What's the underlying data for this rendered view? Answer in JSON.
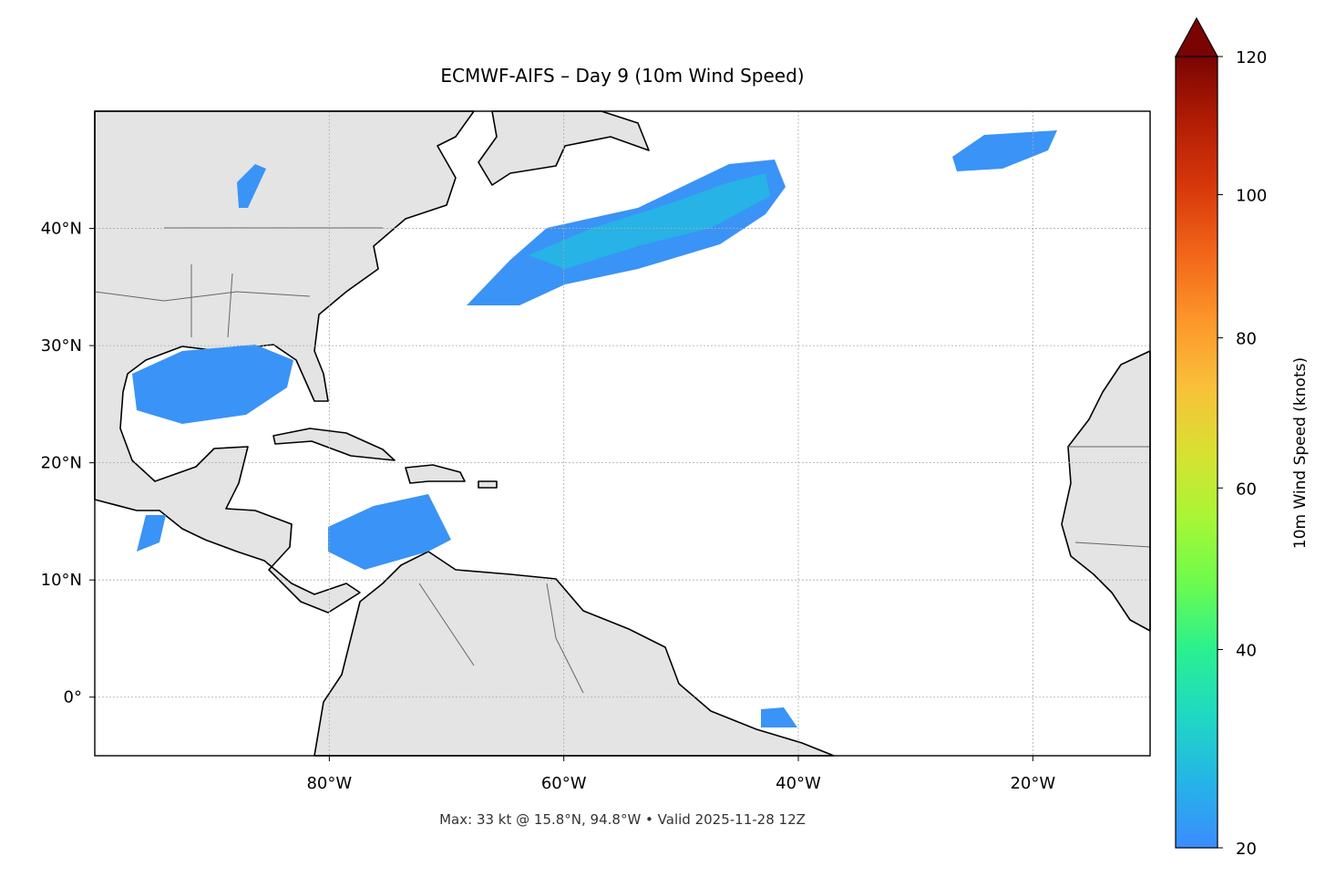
{
  "chart_data": {
    "type": "map",
    "title": "ECMWF-AIFS – Day 9 (10m Wind Speed)",
    "footer": "Max: 33 kt @ 15.8°N, 94.8°W • Valid 2025-11-28 12Z",
    "xlim": [
      -100,
      -10
    ],
    "ylim": [
      -5,
      50
    ],
    "xticks": [
      {
        "value": -80,
        "label": "80°W"
      },
      {
        "value": -60,
        "label": "60°W"
      },
      {
        "value": -40,
        "label": "40°W"
      },
      {
        "value": -20,
        "label": "20°W"
      }
    ],
    "yticks": [
      {
        "value": 0,
        "label": "0°"
      },
      {
        "value": 10,
        "label": "10°N"
      },
      {
        "value": 20,
        "label": "20°N"
      },
      {
        "value": 30,
        "label": "30°N"
      },
      {
        "value": 40,
        "label": "40°N"
      }
    ],
    "grid": true,
    "colorbar": {
      "label": "10m Wind Speed (knots)",
      "lim": [
        20,
        120
      ],
      "ticks": [
        20,
        40,
        60,
        80,
        100,
        120
      ],
      "norm": "power",
      "gamma": 0.86,
      "colors": [
        "#3b8cff",
        "#25b4e6",
        "#1fd8c4",
        "#2af08f",
        "#6cfb4e",
        "#a8f635",
        "#d9e032",
        "#f9c03a",
        "#fd962a",
        "#f2661a",
        "#d8390b",
        "#b31d04",
        "#7a0403"
      ],
      "extend_color": "#7a0403"
    }
  }
}
